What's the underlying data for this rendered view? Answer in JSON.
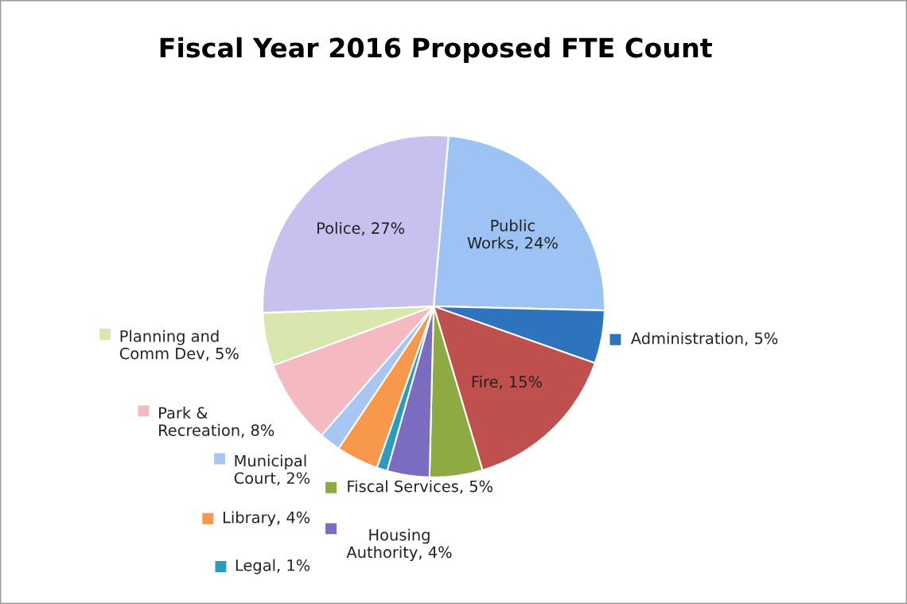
{
  "chart_data": {
    "type": "pie",
    "title": "Fiscal Year 2016 Proposed FTE Count",
    "categories": [
      "Public Works",
      "Administration",
      "Fire",
      "Fiscal Services",
      "Housing Authority",
      "Legal",
      "Library",
      "Municipal Court",
      "Park & Recreation",
      "Planning and Comm Dev",
      "Police"
    ],
    "values": [
      24,
      5,
      15,
      5,
      4,
      1,
      4,
      2,
      8,
      5,
      27
    ],
    "colors": [
      "#9dc3f4",
      "#2e73bd",
      "#c0504d",
      "#8eab43",
      "#7b6cc2",
      "#2a9cc0",
      "#f7984a",
      "#a8c6f3",
      "#f4b9c1",
      "#d9e6ad",
      "#c6c1ef"
    ],
    "value_labels": [
      "24%",
      "5%",
      "15%",
      "5%",
      "4%",
      "1%",
      "4%",
      "2%",
      "8%",
      "5%",
      "27%"
    ],
    "legend": "left"
  }
}
